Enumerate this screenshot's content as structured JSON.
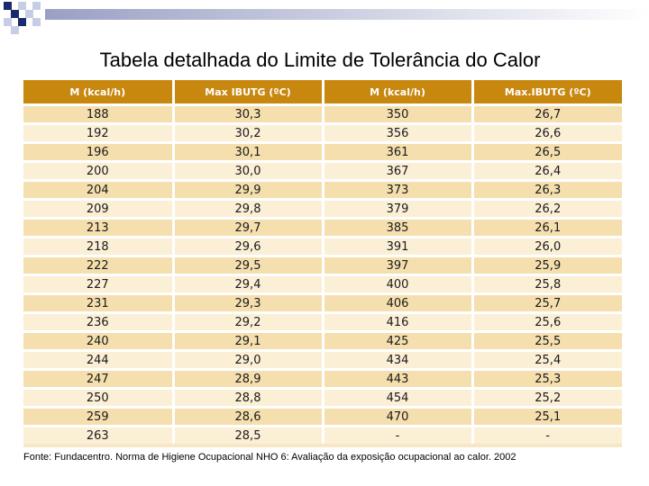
{
  "slide": {
    "title": "Tabela detalhada do Limite de Tolerância do Calor",
    "source": "Fonte: Fundacentro. Norma de Higiene Ocupacional NHO 6: Avaliação da exposição ocupacional ao calor. 2002",
    "accent_color": "#c8870f",
    "decor_color": "#1a2a6c"
  },
  "table": {
    "headers": [
      "M (kcal/h)",
      "Max IBUTG (ºC)",
      "M (kcal/h)",
      "Max.IBUTG (ºC)"
    ],
    "rows": [
      [
        "188",
        "30,3",
        "350",
        "26,7"
      ],
      [
        "192",
        "30,2",
        "356",
        "26,6"
      ],
      [
        "196",
        "30,1",
        "361",
        "26,5"
      ],
      [
        "200",
        "30,0",
        "367",
        "26,4"
      ],
      [
        "204",
        "29,9",
        "373",
        "26,3"
      ],
      [
        "209",
        "29,8",
        "379",
        "26,2"
      ],
      [
        "213",
        "29,7",
        "385",
        "26,1"
      ],
      [
        "218",
        "29,6",
        "391",
        "26,0"
      ],
      [
        "222",
        "29,5",
        "397",
        "25,9"
      ],
      [
        "227",
        "29,4",
        "400",
        "25,8"
      ],
      [
        "231",
        "29,3",
        "406",
        "25,7"
      ],
      [
        "236",
        "29,2",
        "416",
        "25,6"
      ],
      [
        "240",
        "29,1",
        "425",
        "25,5"
      ],
      [
        "244",
        "29,0",
        "434",
        "25,4"
      ],
      [
        "247",
        "28,9",
        "443",
        "25,3"
      ],
      [
        "250",
        "28,8",
        "454",
        "25,2"
      ],
      [
        "259",
        "28,6",
        "470",
        "25,1"
      ],
      [
        "263",
        "28,5",
        "-",
        "-"
      ]
    ]
  }
}
